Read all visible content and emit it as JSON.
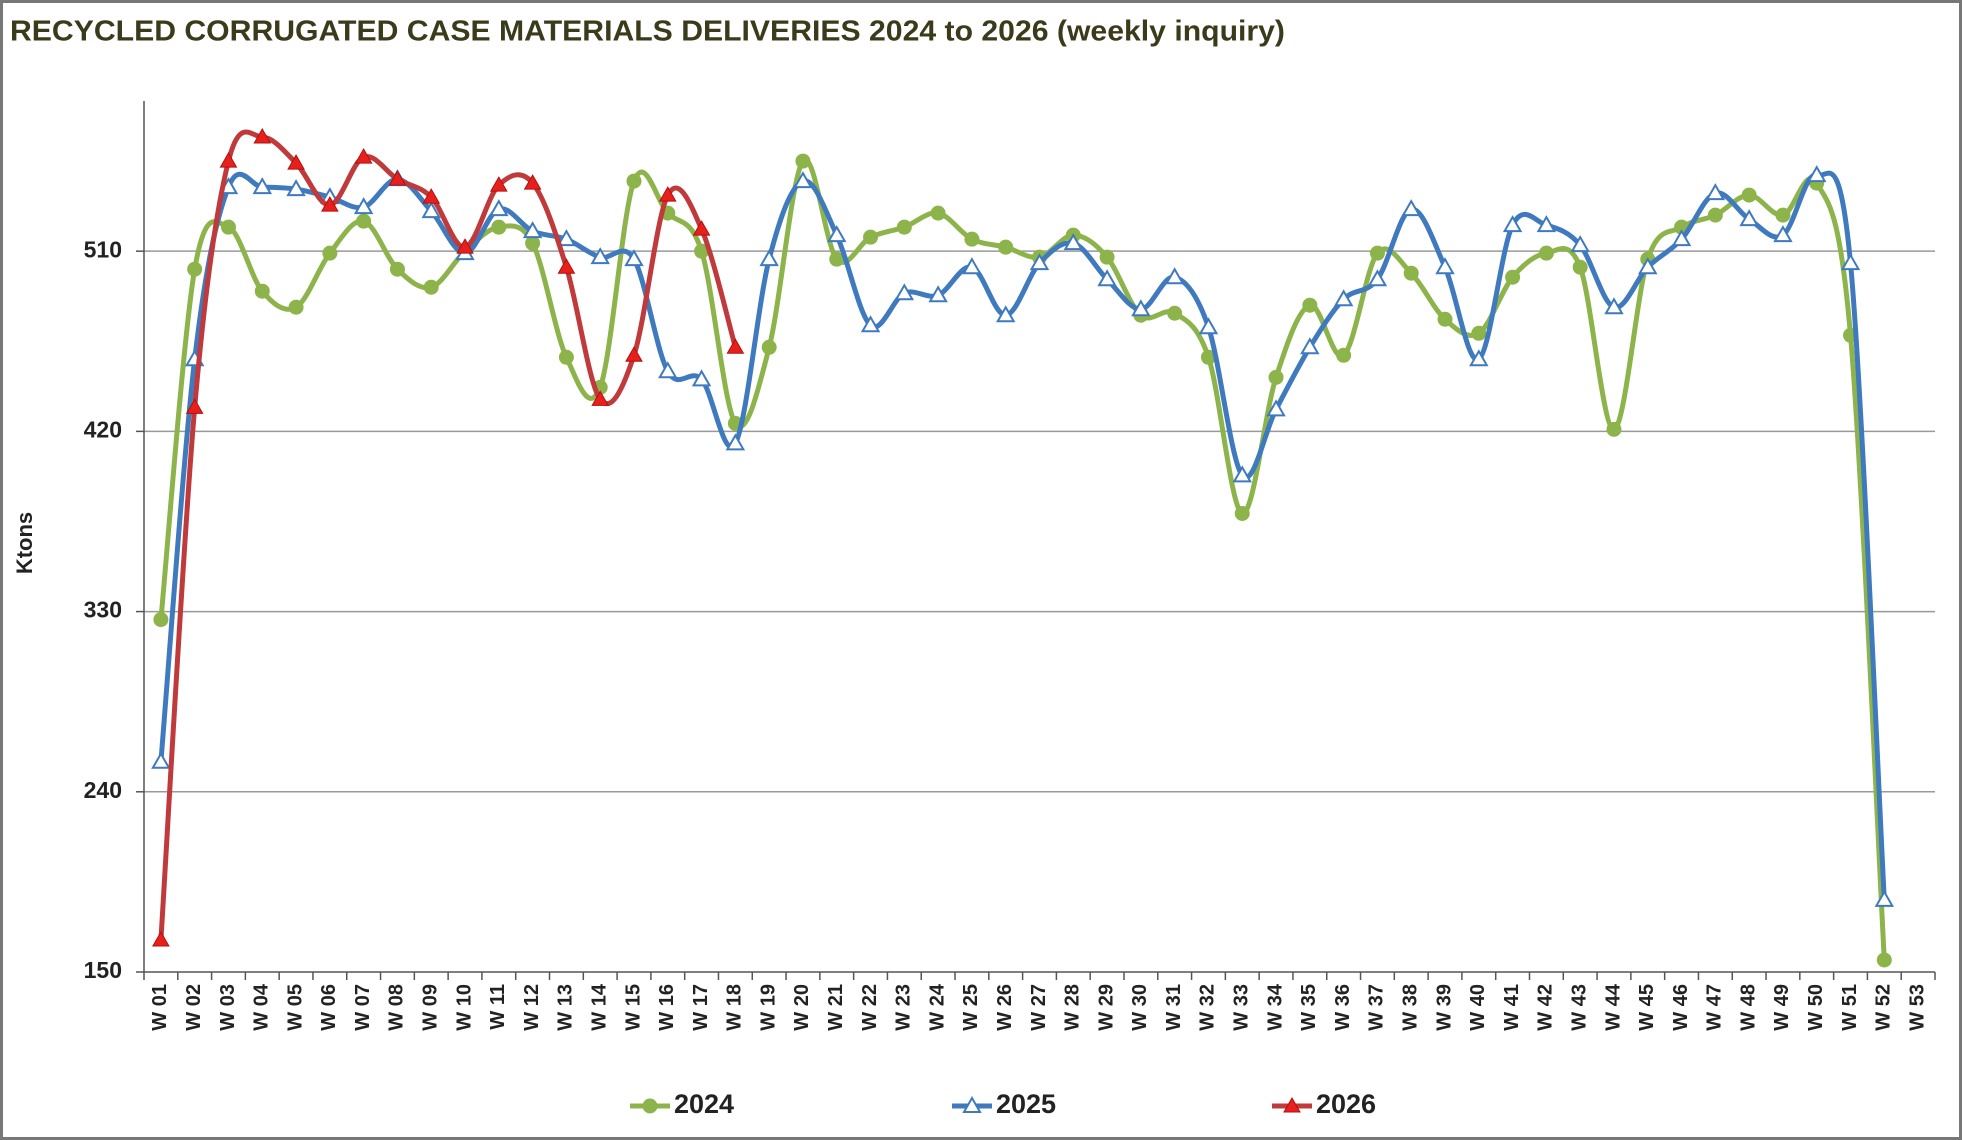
{
  "chart_data": {
    "type": "line",
    "title": "RECYCLED CORRUGATED CASE MATERIALS DELIVERIES 2024 to 2026 (weekly inquiry)",
    "ylabel": "Ktons",
    "categories": [
      "W 01",
      "W 02",
      "W 03",
      "W 04",
      "W 05",
      "W 06",
      "W 07",
      "W 08",
      "W 09",
      "W 10",
      "W 11",
      "W 12",
      "W 13",
      "W 14",
      "W 15",
      "W 16",
      "W 17",
      "W 18",
      "W 19",
      "W 20",
      "W 21",
      "W 22",
      "W 23",
      "W 24",
      "W 25",
      "W 26",
      "W 27",
      "W 28",
      "W 29",
      "W 30",
      "W 31",
      "W 32",
      "W 33",
      "W 34",
      "W 35",
      "W 36",
      "W 37",
      "W 38",
      "W 39",
      "W 40",
      "W 41",
      "W 42",
      "W 43",
      "W 44",
      "W 45",
      "W 46",
      "W 47",
      "W 48",
      "W 49",
      "W 50",
      "W 51",
      "W 52",
      "W 53"
    ],
    "series": [
      {
        "name": "2024",
        "color": "#8db44a",
        "marker": "circle",
        "values": [
          326,
          501,
          522,
          490,
          482,
          509,
          525,
          501,
          492,
          510,
          522,
          514,
          457,
          442,
          545,
          529,
          510,
          424,
          462,
          555,
          506,
          517,
          522,
          529,
          516,
          512,
          507,
          518,
          507,
          478,
          479,
          457,
          379,
          447,
          483,
          458,
          509,
          499,
          476,
          469,
          497,
          509,
          502,
          421,
          506,
          522,
          528,
          538,
          528,
          544,
          468,
          156,
          null
        ]
      },
      {
        "name": "2025",
        "color": "#3f7abf",
        "marker": "triangle-open",
        "values": [
          255,
          456,
          542,
          542,
          541,
          537,
          532,
          546,
          530,
          509,
          531,
          520,
          516,
          507,
          506,
          450,
          446,
          414,
          506,
          545,
          518,
          473,
          489,
          488,
          502,
          478,
          504,
          514,
          496,
          481,
          497,
          472,
          398,
          431,
          462,
          486,
          496,
          531,
          502,
          456,
          523,
          523,
          513,
          482,
          502,
          516,
          539,
          526,
          518,
          548,
          504,
          186,
          null
        ]
      },
      {
        "name": "2026",
        "color": "#c0393b",
        "marker": "triangle",
        "values": [
          166,
          432,
          555,
          567,
          554,
          533,
          557,
          546,
          537,
          512,
          543,
          544,
          502,
          436,
          458,
          538,
          521,
          462,
          null,
          null,
          null,
          null,
          null,
          null,
          null,
          null,
          null,
          null,
          null,
          null,
          null,
          null,
          null,
          null,
          null,
          null,
          null,
          null,
          null,
          null,
          null,
          null,
          null,
          null,
          null,
          null,
          null,
          null,
          null,
          null,
          null,
          null,
          null
        ]
      }
    ],
    "ylim": [
      150,
      585
    ],
    "yticks": [
      150,
      240,
      330,
      420,
      510
    ],
    "grid": true,
    "smooth": true,
    "legend": "bottom"
  }
}
